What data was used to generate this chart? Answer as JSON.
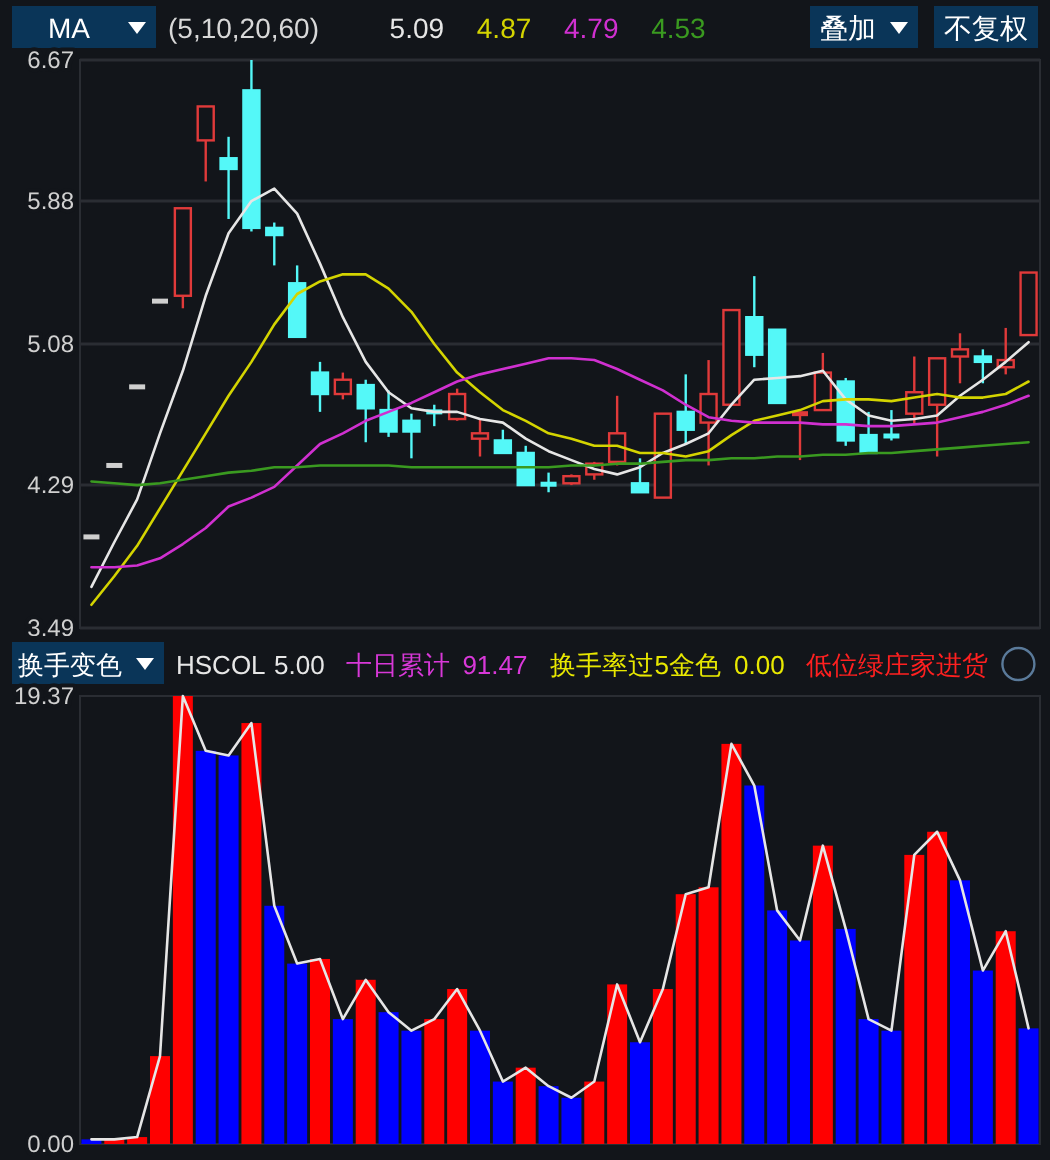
{
  "chart_data": [
    {
      "type": "candlestick",
      "title": "MA",
      "subtitle": "(5,10,20,60)",
      "categories": [
        null,
        null,
        null,
        null,
        null,
        null,
        null,
        null,
        null,
        null,
        null,
        null,
        null,
        null,
        null,
        null,
        null,
        null,
        null,
        null,
        null,
        null,
        null,
        null,
        null,
        null,
        null,
        null,
        null,
        null,
        null,
        null,
        null,
        null,
        null,
        null,
        null,
        null,
        null,
        null,
        null,
        null
      ],
      "ohlc": [
        [
          4.0,
          4.0,
          4.0,
          4.0
        ],
        [
          4.4,
          4.4,
          4.4,
          4.4
        ],
        [
          4.84,
          4.84,
          4.84,
          4.84
        ],
        [
          5.32,
          5.32,
          5.32,
          5.32
        ],
        [
          5.35,
          5.84,
          5.28,
          5.84
        ],
        [
          6.22,
          6.41,
          5.99,
          6.41
        ],
        [
          6.12,
          6.24,
          5.78,
          6.06
        ],
        [
          6.5,
          6.67,
          5.71,
          5.73
        ],
        [
          5.73,
          5.76,
          5.52,
          5.69
        ],
        [
          5.42,
          5.52,
          5.12,
          5.12
        ],
        [
          4.92,
          4.98,
          4.7,
          4.8
        ],
        [
          4.8,
          4.92,
          4.77,
          4.88
        ],
        [
          4.85,
          4.88,
          4.53,
          4.72
        ],
        [
          4.71,
          4.82,
          4.56,
          4.59
        ],
        [
          4.65,
          4.69,
          4.44,
          4.59
        ],
        [
          4.71,
          4.74,
          4.62,
          4.69
        ],
        [
          4.66,
          4.83,
          4.65,
          4.8
        ],
        [
          4.55,
          4.66,
          4.45,
          4.58
        ],
        [
          4.54,
          4.6,
          4.47,
          4.47
        ],
        [
          4.47,
          4.51,
          4.29,
          4.29
        ],
        [
          4.3,
          4.36,
          4.25,
          4.29
        ],
        [
          4.3,
          4.35,
          4.29,
          4.34
        ],
        [
          4.35,
          4.42,
          4.32,
          4.41
        ],
        [
          4.42,
          4.79,
          4.4,
          4.58
        ],
        [
          4.3,
          4.44,
          4.25,
          4.25
        ],
        [
          4.22,
          4.69,
          4.22,
          4.69
        ],
        [
          4.7,
          4.91,
          4.52,
          4.6
        ],
        [
          4.64,
          4.99,
          4.4,
          4.8
        ],
        [
          4.74,
          5.27,
          4.74,
          5.27
        ],
        [
          5.23,
          5.46,
          4.95,
          5.02
        ],
        [
          5.16,
          5.16,
          4.75,
          4.75
        ],
        [
          4.68,
          4.7,
          4.43,
          4.7
        ],
        [
          4.71,
          5.03,
          4.71,
          4.92
        ],
        [
          4.87,
          4.89,
          4.51,
          4.54
        ],
        [
          4.57,
          4.7,
          4.47,
          4.47
        ],
        [
          4.57,
          4.71,
          4.54,
          4.56
        ],
        [
          4.69,
          5.01,
          4.63,
          4.81
        ],
        [
          4.74,
          5.0,
          4.45,
          5.0
        ],
        [
          5.01,
          5.14,
          4.86,
          5.05
        ],
        [
          5.01,
          5.05,
          4.86,
          4.98
        ],
        [
          4.95,
          5.17,
          4.91,
          4.99
        ],
        [
          5.13,
          5.48,
          5.13,
          5.48
        ]
      ],
      "colors": [
        "#cfcfcf",
        "#cfcfcf",
        "#cfcfcf",
        "#cfcfcf",
        "#e03a3a",
        "#e03a3a",
        "#54f8f8",
        "#54f8f8",
        "#54f8f8",
        "#54f8f8",
        "#54f8f8",
        "#e03a3a",
        "#54f8f8",
        "#54f8f8",
        "#54f8f8",
        "#54f8f8",
        "#e03a3a",
        "#e03a3a",
        "#54f8f8",
        "#54f8f8",
        "#54f8f8",
        "#e03a3a",
        "#e03a3a",
        "#e03a3a",
        "#54f8f8",
        "#e03a3a",
        "#54f8f8",
        "#e03a3a",
        "#e03a3a",
        "#54f8f8",
        "#54f8f8",
        "#e03a3a",
        "#e03a3a",
        "#54f8f8",
        "#54f8f8",
        "#54f8f8",
        "#e03a3a",
        "#e03a3a",
        "#e03a3a",
        "#54f8f8",
        "#e03a3a",
        "#e03a3a"
      ],
      "series": [
        {
          "type": "line",
          "name": "5.09",
          "color": "#e6e6e6",
          "values": [
            3.72,
            3.97,
            4.21,
            4.58,
            4.93,
            5.35,
            5.7,
            5.88,
            5.95,
            5.81,
            5.53,
            5.23,
            4.98,
            4.81,
            4.72,
            4.7,
            4.7,
            4.66,
            4.64,
            4.55,
            4.48,
            4.43,
            4.38,
            4.35,
            4.39,
            4.47,
            4.52,
            4.58,
            4.74,
            4.88,
            4.89,
            4.9,
            4.93,
            4.77,
            4.68,
            4.65,
            4.66,
            4.68,
            4.79,
            4.88,
            4.98,
            5.09
          ]
        },
        {
          "type": "line",
          "name": "4.87",
          "color": "#d4d400",
          "values": [
            3.62,
            3.78,
            3.95,
            4.16,
            4.37,
            4.58,
            4.79,
            4.98,
            5.19,
            5.36,
            5.43,
            5.47,
            5.47,
            5.39,
            5.26,
            5.08,
            4.92,
            4.81,
            4.71,
            4.65,
            4.58,
            4.55,
            4.51,
            4.51,
            4.47,
            4.47,
            4.45,
            4.48,
            4.57,
            4.65,
            4.68,
            4.71,
            4.76,
            4.77,
            4.77,
            4.76,
            4.78,
            4.8,
            4.78,
            4.78,
            4.8,
            4.87
          ]
        },
        {
          "type": "line",
          "name": "4.79",
          "color": "#d030d0",
          "values": [
            3.83,
            3.83,
            3.84,
            3.88,
            3.96,
            4.05,
            4.17,
            4.22,
            4.28,
            4.4,
            4.52,
            4.58,
            4.65,
            4.7,
            4.75,
            4.81,
            4.87,
            4.91,
            4.94,
            4.97,
            5.0,
            5.0,
            4.99,
            4.94,
            4.88,
            4.82,
            4.74,
            4.67,
            4.65,
            4.64,
            4.64,
            4.64,
            4.63,
            4.63,
            4.62,
            4.62,
            4.63,
            4.64,
            4.67,
            4.7,
            4.74,
            4.79
          ]
        },
        {
          "type": "line",
          "name": "4.53",
          "color": "#3a9a20",
          "values": [
            4.31,
            4.3,
            4.29,
            4.3,
            4.32,
            4.34,
            4.36,
            4.37,
            4.39,
            4.39,
            4.4,
            4.4,
            4.4,
            4.4,
            4.39,
            4.39,
            4.39,
            4.39,
            4.39,
            4.39,
            4.39,
            4.4,
            4.4,
            4.41,
            4.41,
            4.42,
            4.43,
            4.43,
            4.44,
            4.44,
            4.45,
            4.45,
            4.46,
            4.46,
            4.47,
            4.47,
            4.48,
            4.49,
            4.5,
            4.51,
            4.52,
            4.53
          ]
        }
      ],
      "ylim": [
        3.49,
        6.67
      ],
      "yticks": [
        3.49,
        4.29,
        5.08,
        5.88,
        6.67
      ],
      "grid": "y",
      "legend": "top",
      "annotations": [
        "叠加",
        "不复权"
      ]
    },
    {
      "type": "bar",
      "title": "换手变色",
      "categories": [
        null,
        null,
        null,
        null,
        null,
        null,
        null,
        null,
        null,
        null,
        null,
        null,
        null,
        null,
        null,
        null,
        null,
        null,
        null,
        null,
        null,
        null,
        null,
        null,
        null,
        null,
        null,
        null,
        null,
        null,
        null,
        null,
        null,
        null,
        null,
        null,
        null,
        null,
        null,
        null,
        null,
        null
      ],
      "series": [
        {
          "type": "bar",
          "name": "HSCOL",
          "colors": [
            "#0000ff",
            "#ff0000",
            "#ff0000",
            "#ff0000",
            "#ff0000",
            "#0000ff",
            "#0000ff",
            "#ff0000",
            "#0000ff",
            "#0000ff",
            "#ff0000",
            "#0000ff",
            "#ff0000",
            "#0000ff",
            "#0000ff",
            "#ff0000",
            "#ff0000",
            "#0000ff",
            "#0000ff",
            "#ff0000",
            "#0000ff",
            "#0000ff",
            "#ff0000",
            "#ff0000",
            "#0000ff",
            "#ff0000",
            "#ff0000",
            "#ff0000",
            "#ff0000",
            "#0000ff",
            "#0000ff",
            "#0000ff",
            "#ff0000",
            "#0000ff",
            "#0000ff",
            "#0000ff",
            "#ff0000",
            "#ff0000",
            "#0000ff",
            "#0000ff",
            "#ff0000",
            "#0000ff"
          ],
          "values": [
            0.2,
            0.2,
            0.3,
            3.8,
            19.37,
            17.0,
            16.8,
            18.2,
            10.3,
            7.8,
            8.0,
            5.4,
            7.1,
            5.7,
            4.9,
            5.4,
            6.7,
            4.9,
            2.7,
            3.3,
            2.5,
            2.0,
            2.7,
            6.9,
            4.4,
            6.7,
            10.8,
            11.1,
            17.3,
            15.5,
            10.1,
            8.8,
            12.9,
            9.3,
            5.4,
            4.9,
            12.5,
            13.5,
            11.4,
            7.5,
            9.2,
            5.0
          ]
        },
        {
          "type": "line",
          "color": "#e6e6e6",
          "values": [
            0.2,
            0.2,
            0.3,
            3.8,
            19.37,
            17.0,
            16.8,
            18.2,
            10.3,
            7.8,
            8.0,
            5.4,
            7.1,
            5.7,
            4.9,
            5.4,
            6.7,
            4.9,
            2.7,
            3.3,
            2.5,
            2.0,
            2.7,
            6.9,
            4.4,
            6.7,
            10.8,
            11.1,
            17.3,
            15.5,
            10.1,
            8.8,
            12.9,
            9.3,
            5.4,
            4.9,
            12.5,
            13.5,
            11.4,
            7.5,
            9.2,
            5.0
          ]
        }
      ],
      "ylim": [
        0,
        19.37
      ],
      "yticks": [
        {
          "value": 0,
          "label": "0.00"
        },
        19.37
      ],
      "legend": "top",
      "annotations": [
        "5.00",
        "十日累计",
        "91.47",
        "换手率过5金色",
        "0.00",
        "低位绿庄家进货"
      ]
    }
  ]
}
